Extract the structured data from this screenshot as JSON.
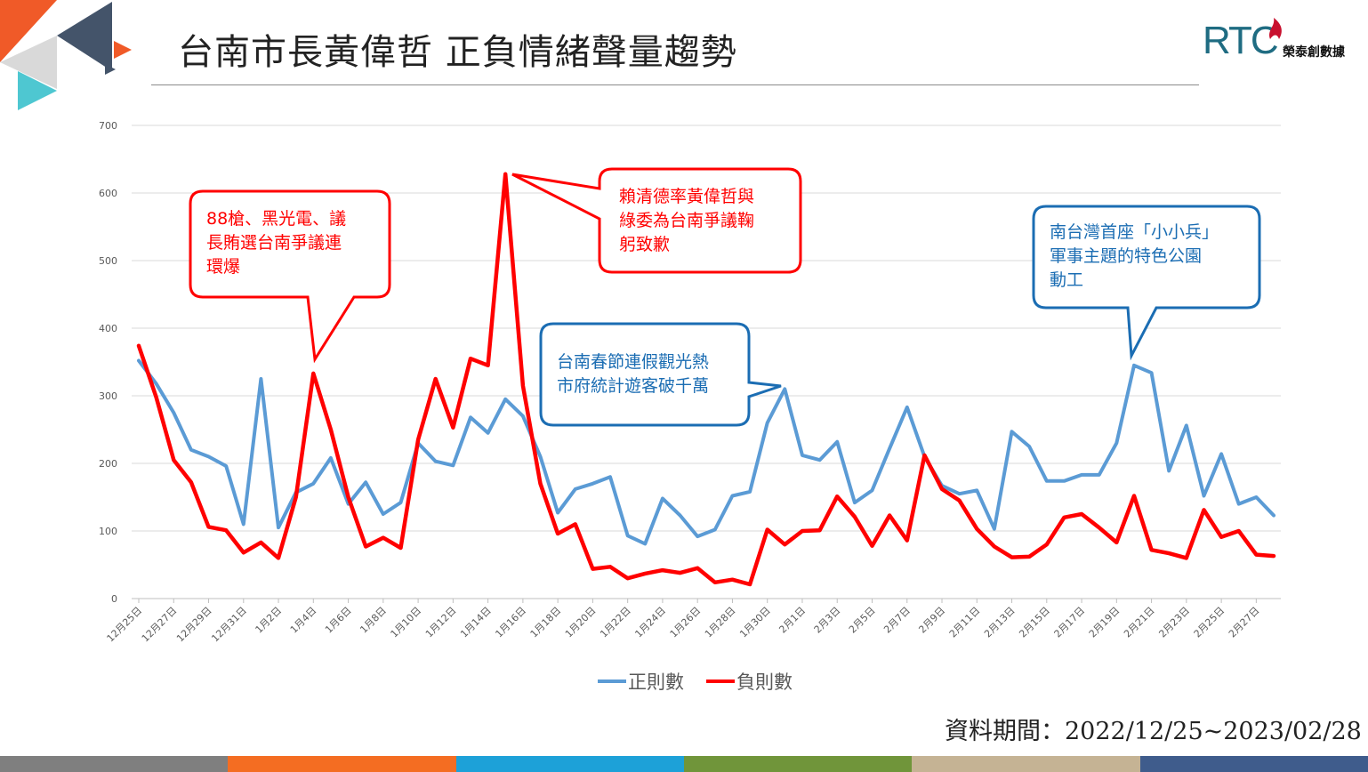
{
  "header": {
    "title": "台南市長黃偉哲 正負情緒聲量趨勢",
    "logo_text": "RTC",
    "logo_name": "榮泰創數據"
  },
  "source": "資料期間：2022/12/25~2023/02/28",
  "colors": {
    "positive": "#5b9bd5",
    "negative": "#ff0000",
    "red_callout": "#ff0000",
    "blue_callout": "#1b6db3",
    "footer": [
      "#7f7f7f",
      "#f46d22",
      "#1da1d8",
      "#70953a",
      "#c5b394",
      "#3f5c8c"
    ],
    "corner": [
      "#f05a28",
      "#44546a",
      "#d9d9d9",
      "#4ec7d1"
    ]
  },
  "callouts": [
    {
      "id": "c1",
      "color": "red",
      "text": "88槍、黑光電、議\n長賄選台南爭議連\n環爆"
    },
    {
      "id": "c2",
      "color": "red",
      "text": "賴清德率黃偉哲與\n綠委為台南爭議鞠\n躬致歉"
    },
    {
      "id": "c3",
      "color": "blue",
      "text": "台南春節連假觀光熱\n市府統計遊客破千萬"
    },
    {
      "id": "c4",
      "color": "blue",
      "text": "南台灣首座「小小兵」\n軍事主題的特色公園\n動工"
    }
  ],
  "chart_data": {
    "type": "line",
    "ylim": [
      0,
      700
    ],
    "y_ticks": [
      0,
      100,
      200,
      300,
      400,
      500,
      600,
      700
    ],
    "x_tick_labels": [
      "12月25日",
      "12月27日",
      "12月29日",
      "12月31日",
      "1月2日",
      "1月4日",
      "1月6日",
      "1月8日",
      "1月10日",
      "1月12日",
      "1月14日",
      "1月16日",
      "1月18日",
      "1月20日",
      "1月22日",
      "1月24日",
      "1月26日",
      "1月28日",
      "1月30日",
      "2月1日",
      "2月3日",
      "2月5日",
      "2月7日",
      "2月9日",
      "2月11日",
      "2月13日",
      "2月15日",
      "2月17日",
      "2月19日",
      "2月21日",
      "2月23日",
      "2月25日",
      "2月27日"
    ],
    "x_start": "2022-12-25",
    "x_end": "2023-02-28",
    "series": [
      {
        "name": "正則數",
        "values": [
          352,
          318,
          275,
          220,
          210,
          196,
          110,
          325,
          105,
          157,
          170,
          208,
          140,
          172,
          125,
          142,
          230,
          203,
          197,
          268,
          245,
          295,
          270,
          210,
          127,
          162,
          170,
          180,
          93,
          81,
          148,
          123,
          92,
          102,
          152,
          158,
          260,
          310,
          212,
          205,
          232,
          142,
          160,
          222,
          283,
          210,
          167,
          155,
          160,
          103,
          247,
          225,
          174,
          174,
          183,
          183,
          230,
          345,
          334,
          189,
          256,
          152,
          214,
          140,
          150,
          123
        ],
        "color": "#5b9bd5"
      },
      {
        "name": "負則數",
        "values": [
          374,
          298,
          205,
          172,
          106,
          101,
          68,
          83,
          60,
          150,
          333,
          250,
          150,
          77,
          90,
          75,
          235,
          325,
          253,
          355,
          345,
          628,
          315,
          170,
          96,
          110,
          44,
          47,
          30,
          37,
          42,
          38,
          45,
          24,
          28,
          21,
          102,
          80,
          100,
          101,
          151,
          121,
          78,
          123,
          86,
          212,
          162,
          145,
          103,
          77,
          61,
          62,
          80,
          120,
          125,
          105,
          83,
          152,
          72,
          67,
          60,
          131,
          91,
          100,
          65,
          63
        ],
        "color": "#ff0000"
      }
    ],
    "legend_position": "bottom"
  }
}
